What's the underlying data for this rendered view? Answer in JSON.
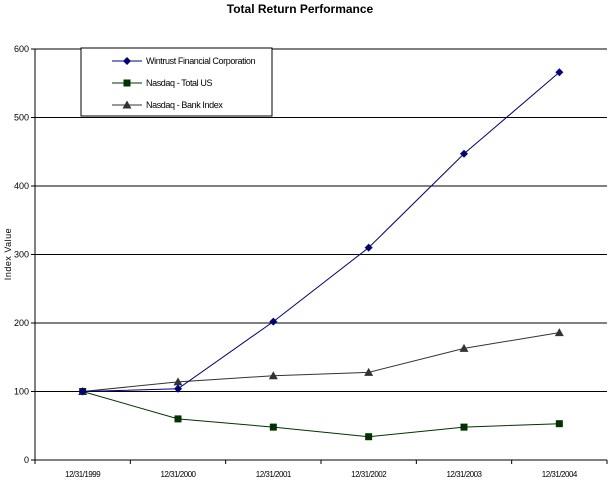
{
  "chart_data": {
    "type": "line",
    "title": "Total Return Performance",
    "xlabel": "",
    "ylabel": "Index Value",
    "ylim": [
      0,
      600
    ],
    "yticks": [
      0,
      100,
      200,
      300,
      400,
      500,
      600
    ],
    "grid": true,
    "legend_position": "top-left",
    "categories": [
      "12/31/1999",
      "12/31/2000",
      "12/31/2001",
      "12/31/2002",
      "12/31/2003",
      "12/31/2004"
    ],
    "series": [
      {
        "name": "Wintrust Financial Corporation",
        "values": [
          100,
          104,
          202,
          310,
          447,
          566
        ],
        "color": "#000080",
        "marker": "diamond"
      },
      {
        "name": "Nasdaq - Total US",
        "values": [
          100,
          60,
          48,
          34,
          48,
          53
        ],
        "color": "#003300",
        "marker": "square"
      },
      {
        "name": "Nasdaq - Bank Index",
        "values": [
          100,
          114,
          123,
          128,
          163,
          186
        ],
        "color": "#333333",
        "marker": "triangle"
      }
    ]
  }
}
